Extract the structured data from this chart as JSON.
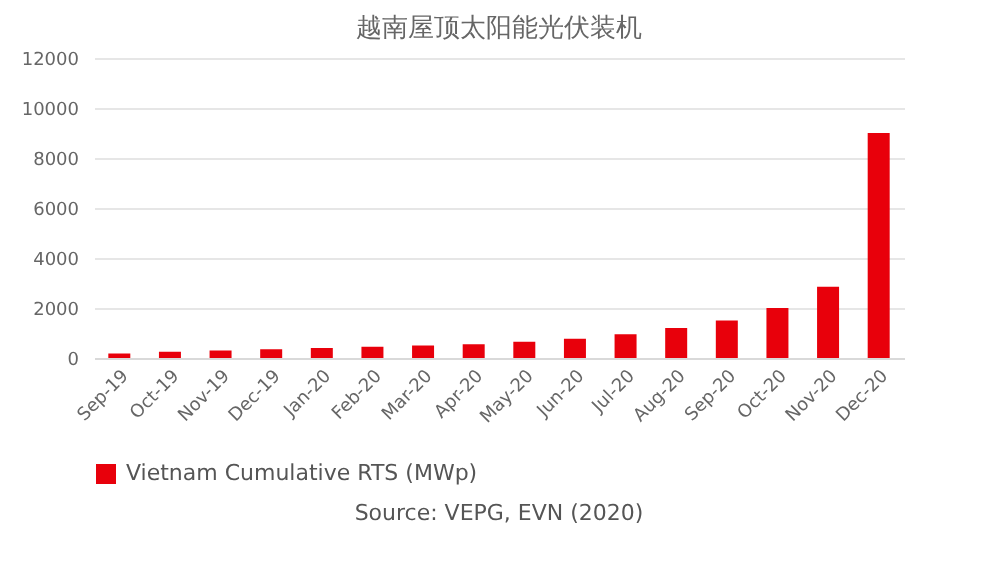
{
  "chart_data": {
    "type": "bar",
    "title": "越南屋顶太阳能光伏装机",
    "categories": [
      "Sep-19",
      "Oct-19",
      "Nov-19",
      "Dec-19",
      "Jan-20",
      "Feb-20",
      "Mar-20",
      "Apr-20",
      "May-20",
      "Jun-20",
      "Jul-20",
      "Aug-20",
      "Sep-20",
      "Oct-20",
      "Nov-20",
      "Dec-20"
    ],
    "series": [
      {
        "name": "Vietnam Cumulative RTS (MWp)",
        "color": "#e8000b",
        "values": [
          180,
          250,
          300,
          350,
          400,
          450,
          500,
          550,
          650,
          770,
          950,
          1200,
          1500,
          2000,
          2850,
          9000
        ]
      }
    ],
    "ylim": [
      0,
      12000
    ],
    "yticks": [
      0,
      2000,
      4000,
      6000,
      8000,
      10000,
      12000
    ],
    "grid": "y",
    "legend": "bottom",
    "annotations": [
      "Source: VEPG, EVN (2020)"
    ]
  }
}
